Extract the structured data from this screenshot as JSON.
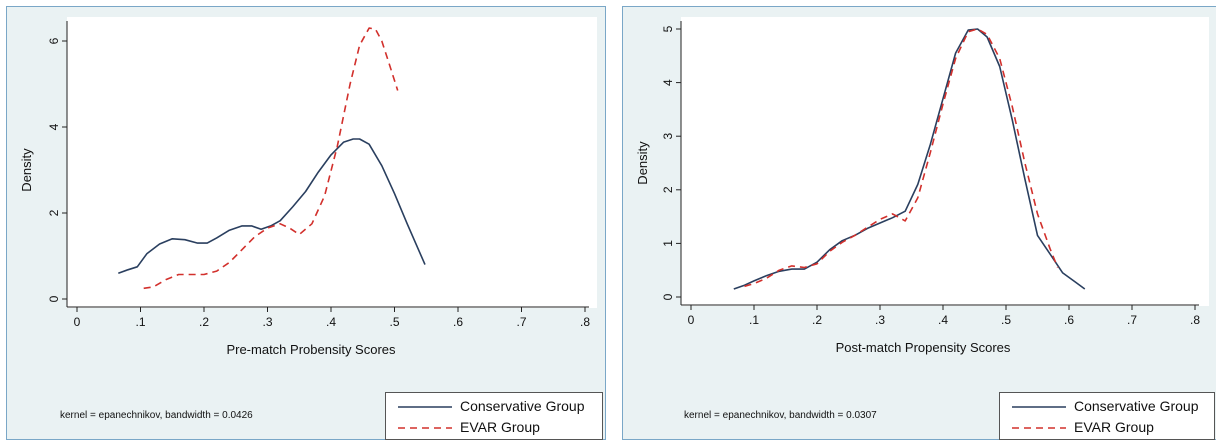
{
  "colors": {
    "conservative": "#2a3f5f",
    "evar": "#d2302c",
    "panel_bg": "#eaf2f3",
    "panel_border": "#7aa7c7"
  },
  "chart_data": [
    {
      "type": "line",
      "title": "",
      "xlabel": "Pre-match Probensity Scores",
      "ylabel": "Density",
      "xlim": [
        0,
        0.8
      ],
      "ylim": [
        0,
        6.3
      ],
      "xticks": [
        0,
        0.1,
        0.2,
        0.3,
        0.4,
        0.5,
        0.6,
        0.7,
        0.8
      ],
      "xtick_labels": [
        "0",
        ".1",
        ".2",
        ".3",
        ".4",
        ".5",
        ".6",
        ".7",
        ".8"
      ],
      "yticks": [
        0,
        2,
        4,
        6
      ],
      "ytick_labels": [
        "0",
        "2",
        "4",
        "6"
      ],
      "grid": false,
      "legend_position": "bottom-right",
      "note": "kernel = epanechnikov, bandwidth = 0.0426",
      "series": [
        {
          "name": "Conservative Group",
          "style": "solid",
          "color": "#2a3f5f",
          "x": [
            0.065,
            0.08,
            0.095,
            0.11,
            0.13,
            0.15,
            0.17,
            0.19,
            0.205,
            0.22,
            0.24,
            0.26,
            0.275,
            0.29,
            0.305,
            0.32,
            0.34,
            0.36,
            0.38,
            0.4,
            0.42,
            0.435,
            0.445,
            0.46,
            0.48,
            0.5,
            0.52,
            0.548
          ],
          "y": [
            0.6,
            0.68,
            0.75,
            1.05,
            1.28,
            1.4,
            1.38,
            1.3,
            1.3,
            1.42,
            1.6,
            1.7,
            1.7,
            1.62,
            1.7,
            1.82,
            2.15,
            2.5,
            2.95,
            3.35,
            3.65,
            3.72,
            3.72,
            3.6,
            3.1,
            2.45,
            1.75,
            0.8
          ]
        },
        {
          "name": "EVAR Group",
          "style": "dash",
          "color": "#d2302c",
          "x": [
            0.105,
            0.12,
            0.14,
            0.16,
            0.18,
            0.2,
            0.22,
            0.24,
            0.26,
            0.28,
            0.3,
            0.32,
            0.335,
            0.35,
            0.37,
            0.39,
            0.41,
            0.43,
            0.445,
            0.46,
            0.47,
            0.48,
            0.49,
            0.505
          ],
          "y": [
            0.25,
            0.28,
            0.45,
            0.57,
            0.57,
            0.57,
            0.65,
            0.85,
            1.15,
            1.45,
            1.65,
            1.75,
            1.65,
            1.5,
            1.75,
            2.4,
            3.55,
            5.0,
            5.9,
            6.3,
            6.28,
            6.0,
            5.55,
            4.85
          ]
        }
      ]
    },
    {
      "type": "line",
      "title": "",
      "xlabel": "Post-match Propensity Scores",
      "ylabel": "Density",
      "xlim": [
        0,
        0.8
      ],
      "ylim": [
        0,
        5
      ],
      "xticks": [
        0,
        0.1,
        0.2,
        0.3,
        0.4,
        0.5,
        0.6,
        0.7,
        0.8
      ],
      "xtick_labels": [
        "0",
        ".1",
        ".2",
        ".3",
        ".4",
        ".5",
        ".6",
        ".7",
        ".8"
      ],
      "yticks": [
        0,
        1,
        2,
        3,
        4,
        5
      ],
      "ytick_labels": [
        "0",
        "1",
        "2",
        "3",
        "4",
        "5"
      ],
      "grid": false,
      "legend_position": "bottom-right",
      "note": "kernel = epanechnikov, bandwidth = 0.0307",
      "series": [
        {
          "name": "Conservative Group",
          "style": "solid",
          "color": "#2a3f5f",
          "x": [
            0.068,
            0.085,
            0.1,
            0.12,
            0.14,
            0.16,
            0.18,
            0.2,
            0.22,
            0.24,
            0.26,
            0.28,
            0.3,
            0.32,
            0.34,
            0.36,
            0.38,
            0.4,
            0.42,
            0.44,
            0.455,
            0.47,
            0.49,
            0.51,
            0.53,
            0.55,
            0.57,
            0.59,
            0.61,
            0.625
          ],
          "y": [
            0.15,
            0.22,
            0.3,
            0.4,
            0.48,
            0.52,
            0.52,
            0.65,
            0.88,
            1.05,
            1.15,
            1.28,
            1.38,
            1.48,
            1.6,
            2.1,
            2.85,
            3.7,
            4.55,
            4.98,
            5.0,
            4.85,
            4.3,
            3.3,
            2.2,
            1.15,
            0.8,
            0.45,
            0.28,
            0.15
          ]
        },
        {
          "name": "EVAR Group",
          "style": "dash",
          "color": "#d2302c",
          "x": [
            0.085,
            0.1,
            0.12,
            0.14,
            0.16,
            0.18,
            0.2,
            0.22,
            0.24,
            0.26,
            0.28,
            0.3,
            0.32,
            0.34,
            0.36,
            0.38,
            0.4,
            0.42,
            0.44,
            0.455,
            0.47,
            0.49,
            0.51,
            0.53,
            0.55,
            0.57,
            0.582
          ],
          "y": [
            0.2,
            0.25,
            0.35,
            0.5,
            0.58,
            0.55,
            0.62,
            0.85,
            1.02,
            1.15,
            1.3,
            1.45,
            1.55,
            1.42,
            1.85,
            2.7,
            3.6,
            4.45,
            4.95,
            5.0,
            4.9,
            4.45,
            3.55,
            2.5,
            1.55,
            0.9,
            0.55
          ]
        }
      ]
    }
  ]
}
